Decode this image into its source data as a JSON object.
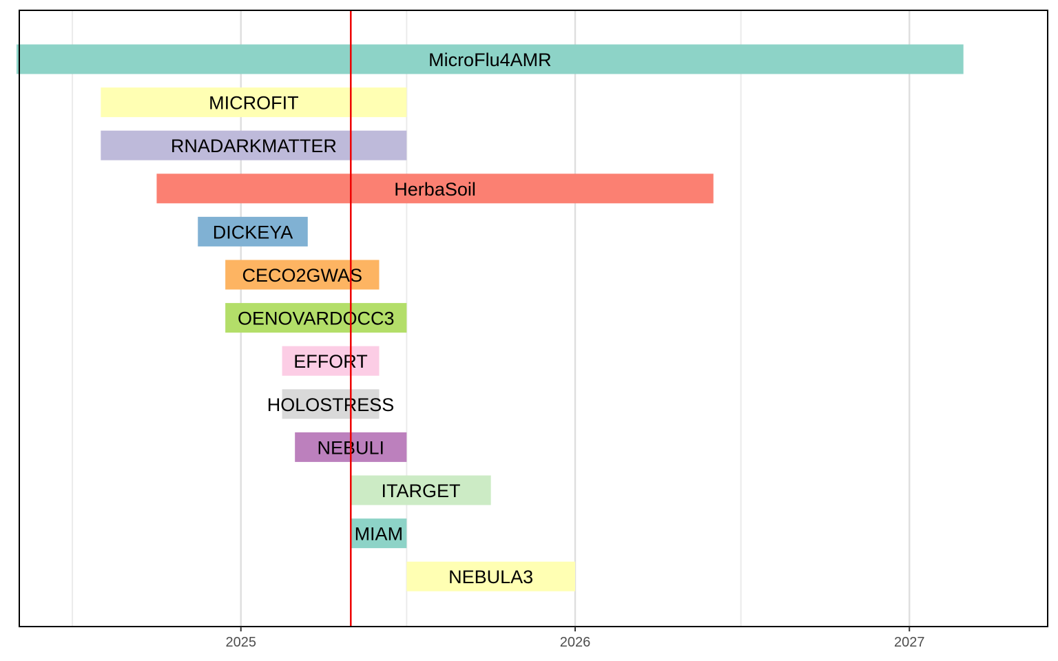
{
  "chart_data": {
    "type": "gantt",
    "title": "",
    "xlabel": "",
    "ylabel": "",
    "x_axis": {
      "type": "date",
      "domain": [
        "2024-05-04",
        "2027-06-01"
      ],
      "ticks": [
        {
          "date": "2025-01-01",
          "label": "2025"
        },
        {
          "date": "2026-01-01",
          "label": "2026"
        },
        {
          "date": "2027-01-01",
          "label": "2027"
        }
      ],
      "minor_gridlines": [
        "2024-07-01",
        "2025-07-01",
        "2026-07-01"
      ]
    },
    "grid": true,
    "legend": "none",
    "today_line": {
      "date": "2025-05-01",
      "color": "#ee0000"
    },
    "bars": [
      {
        "label": "MicroFlu4AMR",
        "start": "2024-05-01",
        "end": "2027-03-01",
        "color": "#8dd3c7"
      },
      {
        "label": "MICROFIT",
        "start": "2024-08-01",
        "end": "2025-07-01",
        "color": "#ffffb3"
      },
      {
        "label": "RNADARKMATTER",
        "start": "2024-08-01",
        "end": "2025-07-01",
        "color": "#bebada"
      },
      {
        "label": "HerbaSoil",
        "start": "2024-10-01",
        "end": "2026-06-01",
        "color": "#fb8072"
      },
      {
        "label": "DICKEYA",
        "start": "2024-11-15",
        "end": "2025-03-15",
        "color": "#80b1d3"
      },
      {
        "label": "CECO2GWAS",
        "start": "2024-12-15",
        "end": "2025-06-01",
        "color": "#fdb462"
      },
      {
        "label": "OENOVARDOCC3",
        "start": "2024-12-15",
        "end": "2025-07-01",
        "color": "#b3de69"
      },
      {
        "label": "EFFORT",
        "start": "2025-02-15",
        "end": "2025-06-01",
        "color": "#fccde5"
      },
      {
        "label": "HOLOSTRESS",
        "start": "2025-02-15",
        "end": "2025-06-01",
        "color": "#d9d9d9"
      },
      {
        "label": "NEBULI",
        "start": "2025-03-01",
        "end": "2025-07-01",
        "color": "#bc80bd"
      },
      {
        "label": "ITARGET",
        "start": "2025-05-01",
        "end": "2025-10-01",
        "color": "#ccebc5"
      },
      {
        "label": "MIAM",
        "start": "2025-05-01",
        "end": "2025-07-01",
        "color": "#8dd3c7"
      },
      {
        "label": "NEBULA3",
        "start": "2025-07-01",
        "end": "2026-01-01",
        "color": "#ffffb3"
      }
    ]
  }
}
